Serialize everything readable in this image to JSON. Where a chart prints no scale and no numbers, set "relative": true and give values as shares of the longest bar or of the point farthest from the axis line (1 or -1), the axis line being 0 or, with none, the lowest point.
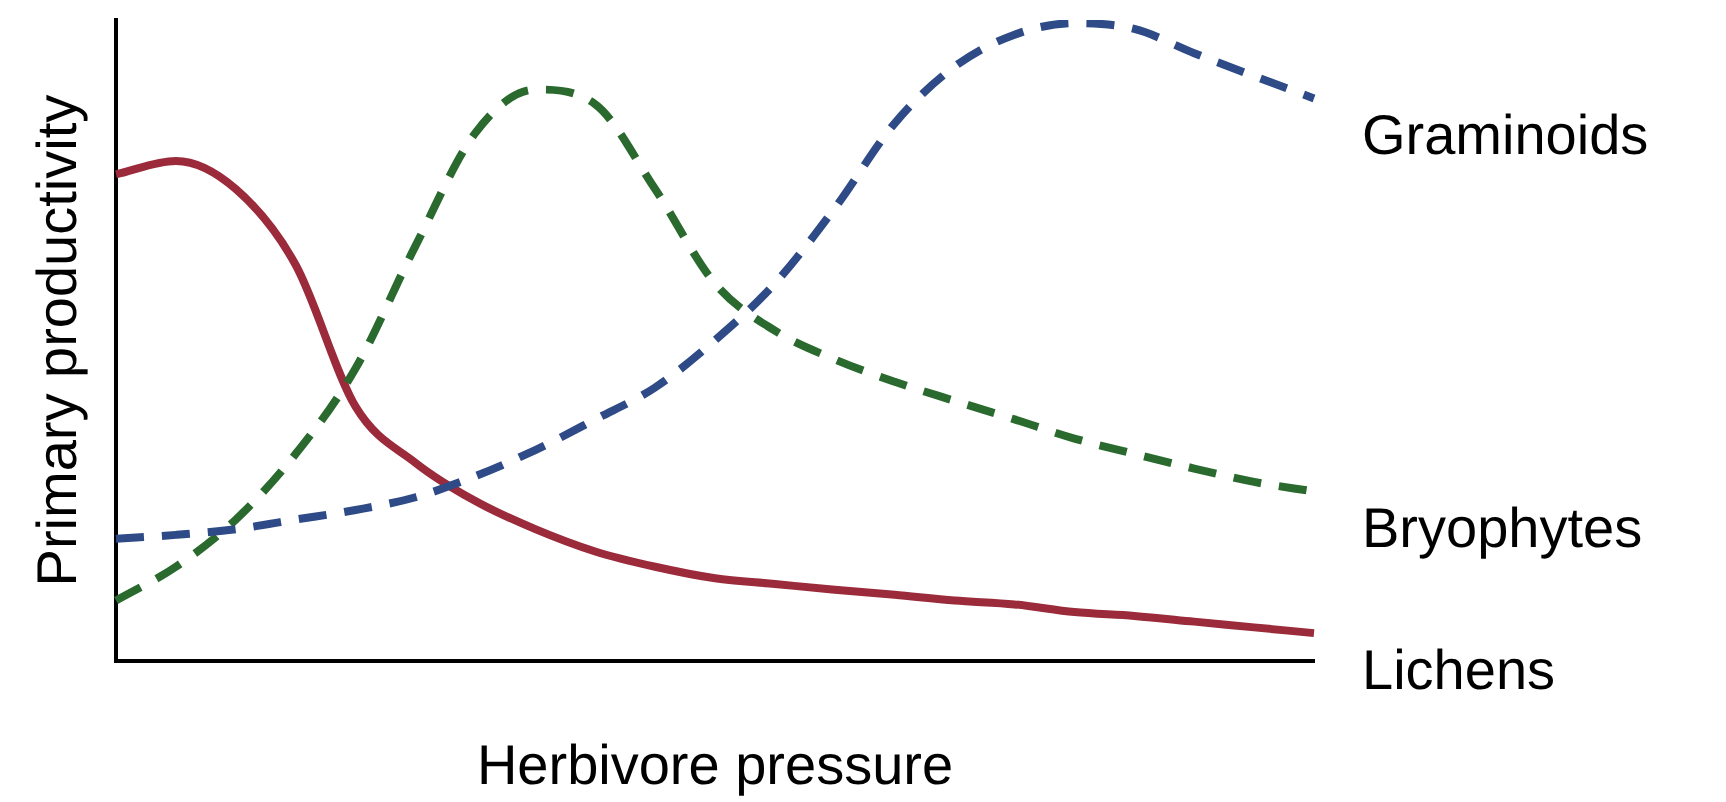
{
  "chart_data": {
    "type": "line",
    "relative": true,
    "xlabel": "Herbivore pressure",
    "ylabel": "Primary productivity",
    "legend": false,
    "grid": false,
    "marker": "none",
    "categories": [
      null,
      null,
      null,
      null,
      null,
      null,
      null,
      null,
      null,
      null,
      null,
      null,
      null,
      null,
      null,
      null,
      null,
      null,
      null,
      null,
      null
    ],
    "series": [
      {
        "name": "Graminoids",
        "color": "#2e4a87",
        "line_style": "dashed",
        "values": [
          0.192,
          0.198,
          0.207,
          0.222,
          0.237,
          0.257,
          0.29,
          0.331,
          0.379,
          0.429,
          0.503,
          0.592,
          0.71,
          0.843,
          0.932,
          0.982,
          1,
          0.991,
          0.953,
          0.917,
          0.882
        ]
      },
      {
        "name": "Bryophytes",
        "color": "#2a6a2e",
        "line_style": "dashed",
        "values": [
          0.095,
          0.148,
          0.222,
          0.325,
          0.459,
          0.651,
          0.828,
          0.896,
          0.873,
          0.74,
          0.592,
          0.518,
          0.473,
          0.438,
          0.408,
          0.379,
          0.349,
          0.325,
          0.302,
          0.281,
          0.266
        ]
      },
      {
        "name": "Lichens",
        "color": "#9b2a3a",
        "line_style": "solid",
        "values": [
          0.763,
          0.784,
          0.74,
          0.621,
          0.399,
          0.311,
          0.251,
          0.207,
          0.172,
          0.148,
          0.13,
          0.121,
          0.112,
          0.104,
          0.095,
          0.089,
          0.077,
          0.071,
          0.062,
          0.053,
          0.044
        ]
      }
    ]
  }
}
